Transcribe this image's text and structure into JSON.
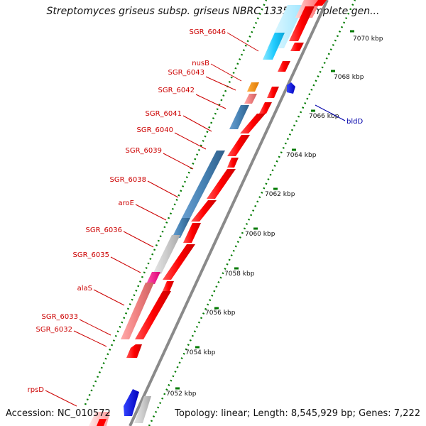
{
  "title": "Streptomyces griseus subsp. griseus NBRC 13350, complete gen...",
  "footer": {
    "accession": "Accession: NC_010572",
    "summary": "Topology: linear; Length: 8,545,929 bp; Genes: 7,222"
  },
  "gene_labels": [
    {
      "text": "SGR_6046",
      "color": "#cc0000"
    },
    {
      "text": "nusB",
      "color": "#cc0000"
    },
    {
      "text": "SGR_6043",
      "color": "#cc0000"
    },
    {
      "text": "SGR_6042",
      "color": "#cc0000"
    },
    {
      "text": "SGR_6041",
      "color": "#cc0000"
    },
    {
      "text": "SGR_6040",
      "color": "#cc0000"
    },
    {
      "text": "SGR_6039",
      "color": "#cc0000"
    },
    {
      "text": "SGR_6038",
      "color": "#cc0000"
    },
    {
      "text": "aroE",
      "color": "#cc0000"
    },
    {
      "text": "SGR_6036",
      "color": "#cc0000"
    },
    {
      "text": "SGR_6035",
      "color": "#cc0000"
    },
    {
      "text": "alaS",
      "color": "#cc0000"
    },
    {
      "text": "SGR_6033",
      "color": "#cc0000"
    },
    {
      "text": "SGR_6032",
      "color": "#cc0000"
    },
    {
      "text": "rpsD",
      "color": "#cc0000"
    },
    {
      "text": "bldD",
      "color": "#0000aa"
    }
  ],
  "ruler": [
    "7070 kbp",
    "7068 kbp",
    "7066 kbp",
    "7064 kbp",
    "7062 kbp",
    "7060 kbp",
    "7058 kbp",
    "7056 kbp",
    "7054 kbp",
    "7052 kbp"
  ]
}
